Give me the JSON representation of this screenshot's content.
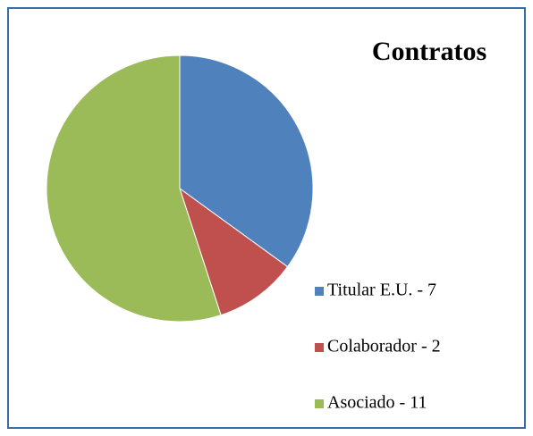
{
  "chart_data": {
    "type": "pie",
    "title": "Contratos",
    "categories": [
      "Titular E.U. - 7",
      "Colaborador - 2",
      "Asociado - 11"
    ],
    "values": [
      7,
      2,
      11
    ],
    "colors": [
      "#4f81bd",
      "#c0504d",
      "#9bbb59"
    ],
    "legend": "right"
  }
}
